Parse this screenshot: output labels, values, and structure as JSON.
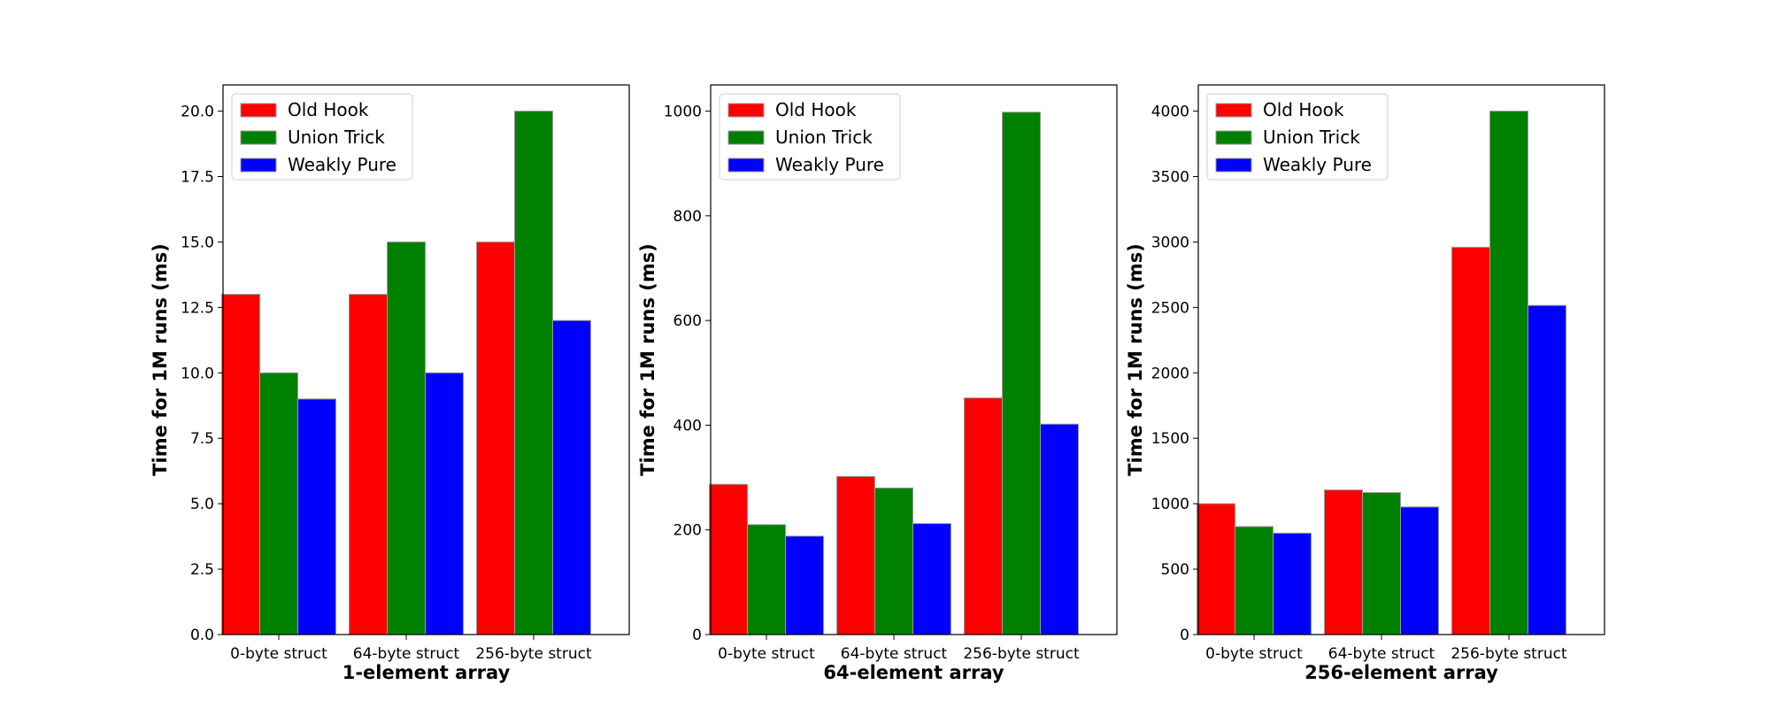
{
  "chart_data": [
    {
      "type": "bar",
      "title": "",
      "xlabel": "1-element array",
      "ylabel": "Time for 1M runs (ms)",
      "categories": [
        "0-byte struct",
        "64-byte struct",
        "256-byte struct"
      ],
      "series": [
        {
          "name": "Old Hook",
          "color": "#ff0000",
          "values": [
            13,
            13,
            15
          ]
        },
        {
          "name": "Union Trick",
          "color": "#008000",
          "values": [
            10,
            15,
            20
          ]
        },
        {
          "name": "Weakly Pure",
          "color": "#0000ff",
          "values": [
            9,
            10,
            12
          ]
        }
      ],
      "ylim": [
        0,
        21
      ],
      "yticks": [
        0,
        2.5,
        5,
        7.5,
        10,
        12.5,
        15,
        17.5,
        20
      ],
      "ytick_labels": [
        "0.0",
        "2.5",
        "5.0",
        "7.5",
        "10.0",
        "12.5",
        "15.0",
        "17.5",
        "20.0"
      ],
      "grid": false,
      "legend": "upper-left"
    },
    {
      "type": "bar",
      "title": "",
      "xlabel": "64-element array",
      "ylabel": "Time for 1M runs (ms)",
      "categories": [
        "0-byte struct",
        "64-byte struct",
        "256-byte struct"
      ],
      "series": [
        {
          "name": "Old Hook",
          "color": "#ff0000",
          "values": [
            287,
            302,
            452
          ]
        },
        {
          "name": "Union Trick",
          "color": "#008000",
          "values": [
            210,
            280,
            998
          ]
        },
        {
          "name": "Weakly Pure",
          "color": "#0000ff",
          "values": [
            188,
            212,
            402
          ]
        }
      ],
      "ylim": [
        0,
        1050
      ],
      "yticks": [
        0,
        200,
        400,
        600,
        800,
        1000
      ],
      "ytick_labels": [
        "0",
        "200",
        "400",
        "600",
        "800",
        "1000"
      ],
      "grid": false,
      "legend": "upper-left"
    },
    {
      "type": "bar",
      "title": "",
      "xlabel": "256-element array",
      "ylabel": "Time for 1M runs (ms)",
      "categories": [
        "0-byte struct",
        "64-byte struct",
        "256-byte struct"
      ],
      "series": [
        {
          "name": "Old Hook",
          "color": "#ff0000",
          "values": [
            1000,
            1105,
            2960
          ]
        },
        {
          "name": "Union Trick",
          "color": "#008000",
          "values": [
            825,
            1085,
            4000
          ]
        },
        {
          "name": "Weakly Pure",
          "color": "#0000ff",
          "values": [
            775,
            975,
            2515
          ]
        }
      ],
      "ylim": [
        0,
        4200
      ],
      "yticks": [
        0,
        500,
        1000,
        1500,
        2000,
        2500,
        3000,
        3500,
        4000
      ],
      "ytick_labels": [
        "0",
        "500",
        "1000",
        "1500",
        "2000",
        "2500",
        "3000",
        "3500",
        "4000"
      ],
      "grid": false,
      "legend": "upper-left"
    }
  ]
}
